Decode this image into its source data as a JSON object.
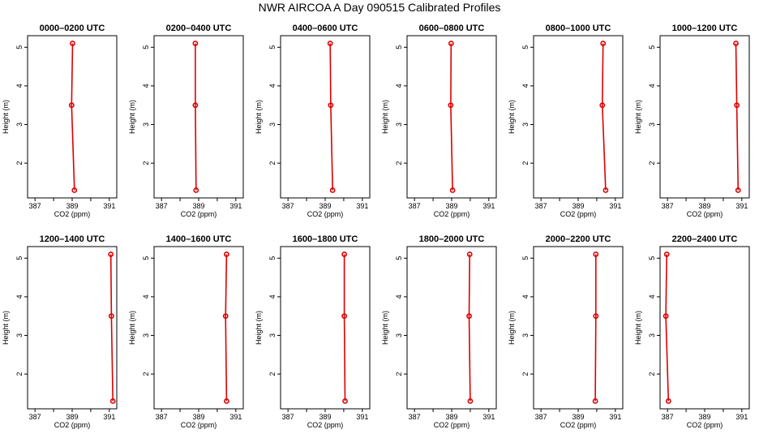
{
  "chart_data": {
    "type": "line",
    "title": "NWR AIRCOA A  Day 090515  Calibrated Profiles",
    "xlabel": "CO2 (ppm)",
    "ylabel": "Height (m)",
    "xlim": [
      386.6,
      391.4
    ],
    "ylim": [
      1.1,
      5.3
    ],
    "xticks": [
      387,
      388,
      389,
      390,
      391
    ],
    "xtick_labels": [
      "387",
      "",
      "389",
      "",
      "391"
    ],
    "yticks": [
      2,
      3,
      4,
      5
    ],
    "ytick_labels": [
      "2",
      "3",
      "4",
      "5"
    ],
    "grid": false,
    "panels": [
      {
        "title": "0000–0200 UTC",
        "x": [
          389.02,
          388.97,
          389.12
        ],
        "y": [
          5.1,
          3.5,
          1.3
        ]
      },
      {
        "title": "0200–0400 UTC",
        "x": [
          388.82,
          388.82,
          388.86
        ],
        "y": [
          5.1,
          3.5,
          1.3
        ]
      },
      {
        "title": "0400–0600 UTC",
        "x": [
          389.27,
          389.3,
          389.4
        ],
        "y": [
          5.1,
          3.5,
          1.3
        ]
      },
      {
        "title": "0600–0800 UTC",
        "x": [
          388.97,
          388.95,
          389.05
        ],
        "y": [
          5.1,
          3.5,
          1.3
        ]
      },
      {
        "title": "0800–1000 UTC",
        "x": [
          390.34,
          390.3,
          390.48
        ],
        "y": [
          5.1,
          3.5,
          1.3
        ]
      },
      {
        "title": "1000–1200 UTC",
        "x": [
          390.68,
          390.73,
          390.8
        ],
        "y": [
          5.1,
          3.5,
          1.3
        ]
      },
      {
        "title": "1200–1400 UTC",
        "x": [
          391.08,
          391.11,
          391.19
        ],
        "y": [
          5.1,
          3.5,
          1.3
        ]
      },
      {
        "title": "1400–1600 UTC",
        "x": [
          390.5,
          390.45,
          390.5
        ],
        "y": [
          5.1,
          3.5,
          1.3
        ]
      },
      {
        "title": "1600–1800 UTC",
        "x": [
          390.03,
          390.03,
          390.07
        ],
        "y": [
          5.1,
          3.5,
          1.3
        ]
      },
      {
        "title": "1800–2000 UTC",
        "x": [
          389.97,
          389.94,
          390.0
        ],
        "y": [
          5.1,
          3.5,
          1.3
        ]
      },
      {
        "title": "2000–2200 UTC",
        "x": [
          389.95,
          389.95,
          389.92
        ],
        "y": [
          5.1,
          3.5,
          1.3
        ]
      },
      {
        "title": "2200–2400 UTC",
        "x": [
          386.96,
          386.91,
          387.05
        ],
        "y": [
          5.1,
          3.5,
          1.3
        ]
      }
    ]
  },
  "colors": {
    "line": "#dd0000",
    "axis": "#000000",
    "background": "#ffffff"
  }
}
